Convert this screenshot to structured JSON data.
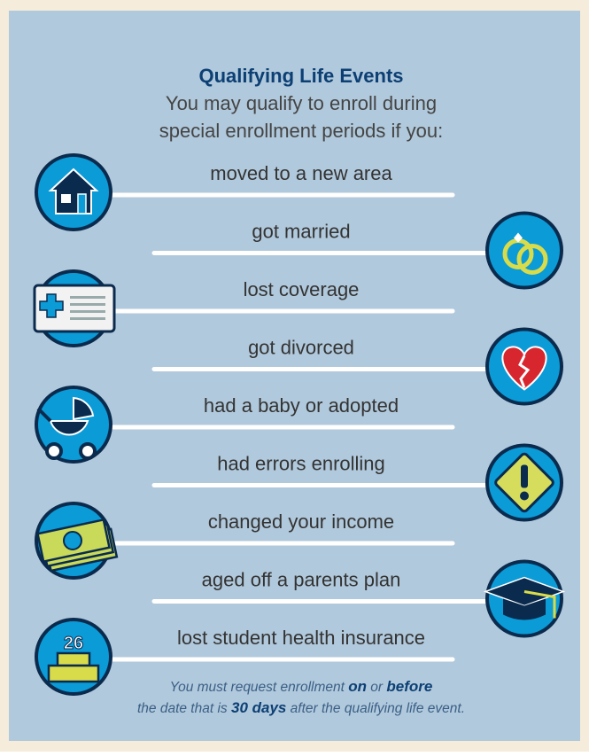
{
  "title": "Qualifying Life Events",
  "subtitle": [
    "You may qualify to enroll during",
    "special enrollment periods if you:"
  ],
  "events": [
    {
      "label": "moved to a new area"
    },
    {
      "label": "got married"
    },
    {
      "label": "lost coverage"
    },
    {
      "label": "got divorced"
    },
    {
      "label": "had a baby or adopted"
    },
    {
      "label": "had errors enrolling"
    },
    {
      "label": "changed your income"
    },
    {
      "label": "aged off a parents plan"
    },
    {
      "label": "lost student health insurance"
    }
  ],
  "cake_number": "26",
  "footnote": [
    [
      {
        "text": "You must request enrollment "
      },
      {
        "text": "on",
        "emphasis": true
      },
      {
        "text": " or "
      },
      {
        "text": "before",
        "emphasis": true
      }
    ],
    [
      {
        "text": "the date that is "
      },
      {
        "text": "30 days",
        "emphasis": true
      },
      {
        "text": " after the qualifying life event."
      }
    ]
  ]
}
